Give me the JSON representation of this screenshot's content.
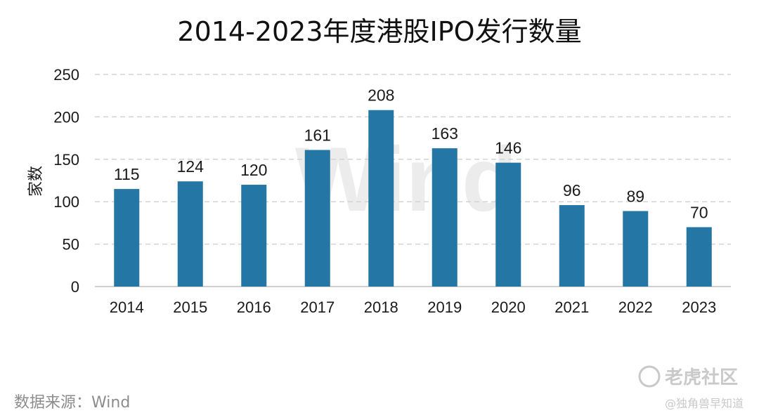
{
  "chart_data": {
    "type": "bar",
    "title": "2014-2023年度港股IPO发行数量",
    "xlabel": "",
    "ylabel": "家数",
    "categories": [
      "2014",
      "2015",
      "2016",
      "2017",
      "2018",
      "2019",
      "2020",
      "2021",
      "2022",
      "2023"
    ],
    "values": [
      115,
      124,
      120,
      161,
      208,
      163,
      146,
      96,
      89,
      70
    ],
    "ylim": [
      0,
      250
    ],
    "yticks": [
      0,
      50,
      100,
      150,
      200,
      250
    ],
    "grid": true,
    "bar_color": "#2477a4",
    "data_labels": true
  },
  "source": "数据来源：Wind",
  "watermark": {
    "background_text": "Wind",
    "logo_text": "老虎社区",
    "credit_text": "@独角兽早知道"
  }
}
